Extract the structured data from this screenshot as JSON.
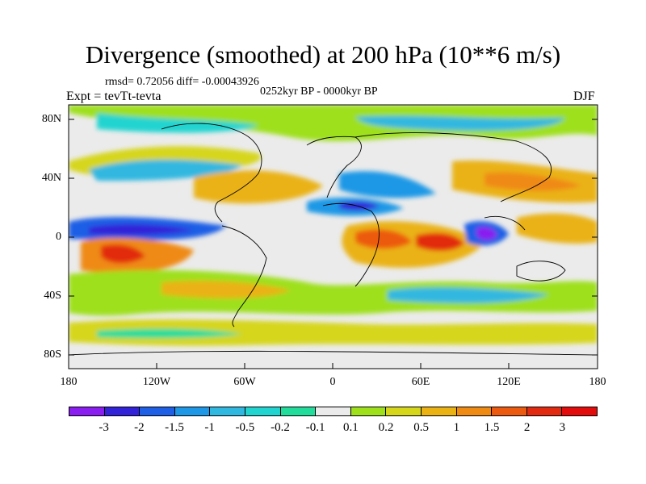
{
  "title": "Divergence (smoothed) at 200 hPa (10**6 m/s)",
  "stats": "rmsd= 0.72056 diff= -0.00043926",
  "experiment": "Expt = tevTt-tevta",
  "period": "0252kyr BP - 0000kyr BP",
  "season": "DJF",
  "map": {
    "lat_ticks": [
      "80N",
      "40N",
      "0",
      "40S",
      "80S"
    ],
    "lon_ticks": [
      "180",
      "120W",
      "60W",
      "0",
      "60E",
      "120E",
      "180"
    ]
  },
  "colorbar": {
    "labels": [
      "-3",
      "-2",
      "-1.5",
      "-1",
      "-0.5",
      "-0.2",
      "-0.1",
      "0.1",
      "0.2",
      "0.5",
      "1",
      "1.5",
      "2",
      "3"
    ],
    "colors": [
      "#8a1df0",
      "#3223d8",
      "#1e5fe6",
      "#1e98e6",
      "#30b8e0",
      "#21d4d0",
      "#22dc9c",
      "#ebebeb",
      "#9ee01a",
      "#d6d61a",
      "#eab213",
      "#ef8a12",
      "#ec5a10",
      "#e22a10",
      "#e30c0c"
    ]
  },
  "palette": {
    "neutral": "#ebebeb",
    "coast": "#000000"
  }
}
